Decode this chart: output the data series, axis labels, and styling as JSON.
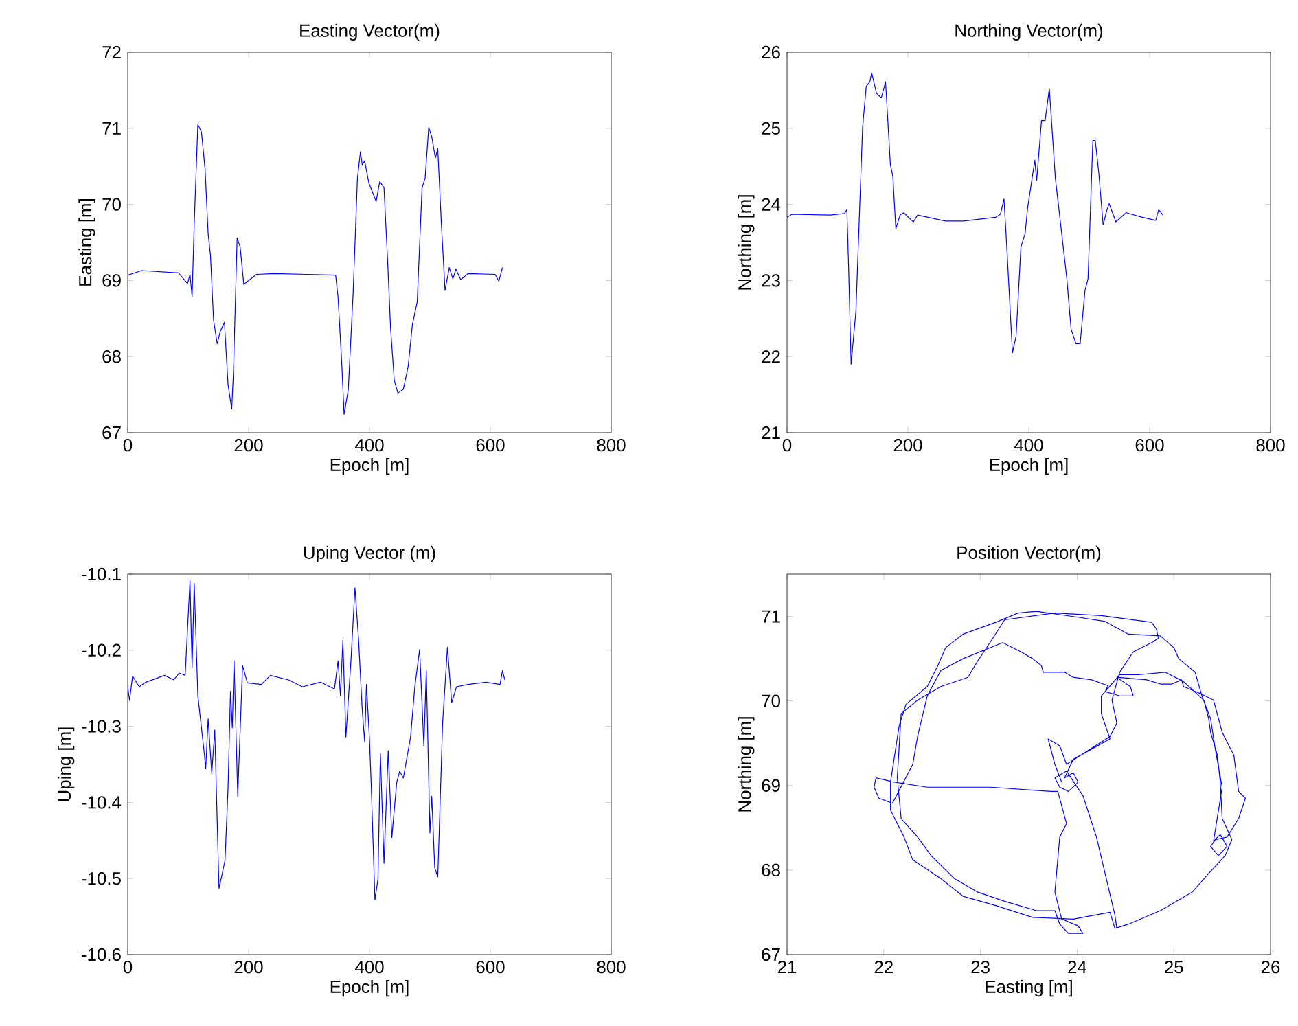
{
  "chart_data": [
    {
      "type": "line",
      "title": "Easting Vector(m)",
      "xlabel": "Epoch [m]",
      "ylabel": "Easting [m]",
      "xlim": [
        0,
        800
      ],
      "ylim": [
        67,
        72
      ],
      "xticks": [
        0,
        200,
        400,
        600,
        800
      ],
      "yticks": [
        67,
        68,
        69,
        70,
        71,
        72
      ],
      "series": [
        {
          "color": "#0000ff",
          "x": [
            0,
            23,
            84,
            99,
            103,
            106.5,
            110,
            116,
            122,
            128,
            133,
            137,
            142,
            148,
            153,
            160,
            166,
            172,
            175,
            181,
            186,
            192,
            213,
            243,
            297,
            344,
            348,
            354,
            358,
            365,
            373,
            380,
            385,
            388,
            392,
            399,
            411,
            417,
            424,
            430,
            435,
            441,
            447,
            456,
            464,
            471,
            479,
            487,
            492,
            498,
            503,
            509,
            513,
            519,
            525,
            532,
            538,
            543,
            551,
            563,
            608,
            614,
            620
          ],
          "values": [
            69.07,
            69.13,
            69.1,
            68.96,
            69.08,
            68.79,
            69.74,
            71.05,
            70.95,
            70.46,
            69.62,
            69.32,
            68.48,
            68.17,
            68.33,
            68.45,
            67.63,
            67.31,
            67.81,
            69.56,
            69.44,
            68.95,
            69.08,
            69.09,
            69.08,
            69.07,
            68.78,
            67.93,
            67.24,
            67.57,
            68.84,
            70.34,
            70.69,
            70.52,
            70.57,
            70.28,
            70.04,
            70.3,
            70.22,
            69.26,
            68.36,
            67.69,
            67.52,
            67.57,
            67.87,
            68.42,
            68.72,
            70.22,
            70.34,
            71.01,
            70.89,
            70.61,
            70.73,
            69.74,
            68.87,
            69.17,
            69.02,
            69.15,
            69.01,
            69.09,
            69.08,
            68.99,
            69.17
          ]
        }
      ]
    },
    {
      "type": "line",
      "title": "Northing Vector(m)",
      "xlabel": "Epoch [m]",
      "ylabel": "Northing [m]",
      "xlim": [
        0,
        800
      ],
      "ylim": [
        21,
        26
      ],
      "xticks": [
        0,
        200,
        400,
        600,
        800
      ],
      "yticks": [
        21,
        22,
        23,
        24,
        25,
        26
      ],
      "series": [
        {
          "color": "#0000ff",
          "x": [
            0,
            8,
            72,
            95,
            99,
            102,
            106,
            114,
            125,
            131,
            137,
            140,
            148,
            156,
            163,
            171,
            175,
            180,
            187,
            193,
            209,
            216,
            262,
            292,
            345,
            353,
            359,
            364,
            373,
            379,
            387,
            394,
            398,
            410,
            413,
            421,
            427,
            434,
            444,
            451,
            463,
            470,
            478,
            485,
            493,
            498,
            506,
            510,
            516,
            523,
            529,
            533,
            544,
            561,
            588,
            610,
            615,
            622
          ],
          "values": [
            23.83,
            23.87,
            23.86,
            23.88,
            23.93,
            23.14,
            21.9,
            22.6,
            25.01,
            25.55,
            25.61,
            25.73,
            25.46,
            25.4,
            25.61,
            24.52,
            24.37,
            23.68,
            23.86,
            23.89,
            23.77,
            23.86,
            23.78,
            23.78,
            23.83,
            23.87,
            24.07,
            23.38,
            22.05,
            22.27,
            23.44,
            23.62,
            23.95,
            24.58,
            24.31,
            25.1,
            25.1,
            25.52,
            24.34,
            23.86,
            23.02,
            22.36,
            22.17,
            22.17,
            22.87,
            23.02,
            24.84,
            24.84,
            24.4,
            23.73,
            23.92,
            24.01,
            23.77,
            23.89,
            23.83,
            23.79,
            23.93,
            23.86
          ]
        }
      ]
    },
    {
      "type": "line",
      "title": "Uping Vector (m)",
      "xlabel": "Epoch [m]",
      "ylabel": "Uping [m]",
      "xlim": [
        0,
        800
      ],
      "ylim": [
        -10.6,
        -10.1
      ],
      "xticks": [
        0,
        200,
        400,
        600,
        800
      ],
      "yticks": [
        -10.6,
        -10.5,
        -10.4,
        -10.3,
        -10.2,
        -10.1
      ],
      "series": [
        {
          "color": "#0000ff",
          "x": [
            0,
            3,
            8,
            19,
            30,
            61,
            76,
            85,
            95,
            103,
            106.5,
            110,
            116,
            122,
            127,
            129,
            133,
            139,
            144,
            151,
            156,
            161,
            166,
            170,
            173,
            176,
            182,
            190,
            198,
            221,
            236,
            266,
            289,
            319,
            342,
            348,
            352,
            356,
            361,
            369,
            376,
            382,
            388,
            392,
            395,
            400,
            403,
            409,
            414,
            418,
            424,
            431,
            437,
            445,
            450,
            456,
            462,
            468,
            475,
            483,
            490,
            494,
            500,
            503,
            508,
            513,
            517,
            521,
            529,
            536,
            544,
            563,
            593,
            616,
            620,
            624
          ],
          "values": [
            -10.248,
            -10.266,
            -10.234,
            -10.248,
            -10.242,
            -10.233,
            -10.239,
            -10.23,
            -10.233,
            -10.109,
            -10.223,
            -10.112,
            -10.26,
            -10.302,
            -10.338,
            -10.356,
            -10.29,
            -10.362,
            -10.305,
            -10.513,
            -10.495,
            -10.476,
            -10.38,
            -10.254,
            -10.302,
            -10.214,
            -10.392,
            -10.22,
            -10.243,
            -10.245,
            -10.233,
            -10.239,
            -10.248,
            -10.242,
            -10.251,
            -10.214,
            -10.26,
            -10.187,
            -10.314,
            -10.218,
            -10.118,
            -10.187,
            -10.278,
            -10.32,
            -10.245,
            -10.317,
            -10.38,
            -10.528,
            -10.501,
            -10.335,
            -10.48,
            -10.332,
            -10.446,
            -10.374,
            -10.359,
            -10.368,
            -10.341,
            -10.314,
            -10.248,
            -10.199,
            -10.326,
            -10.227,
            -10.44,
            -10.392,
            -10.486,
            -10.498,
            -10.398,
            -10.296,
            -10.196,
            -10.269,
            -10.248,
            -10.245,
            -10.242,
            -10.245,
            -10.227,
            -10.239
          ]
        }
      ]
    },
    {
      "type": "line",
      "title": "Position Vector(m)",
      "xlabel": "Easting [m]",
      "ylabel": "Northing [m]",
      "xlim": [
        21,
        26
      ],
      "ylim": [
        67,
        71.5
      ],
      "xticks": [
        21,
        22,
        23,
        24,
        25,
        26
      ],
      "yticks": [
        67,
        68,
        69,
        70,
        71
      ],
      "series": [
        {
          "color": "#0000ff",
          "x": [
            23.84,
            23.77,
            23.7,
            23.82,
            23.89,
            24.34,
            24.41,
            24.36,
            24.44,
            24.58,
            24.77,
            24.84,
            24.82,
            24.77,
            24.25,
            23.77,
            23.25,
            23.11,
            22.97,
            22.87,
            22.59,
            22.35,
            22.18,
            22.14,
            22.18,
            22.35,
            22.49,
            22.73,
            22.97,
            23.25,
            23.58,
            23.77,
            23.82,
            23.91,
            24.06,
            24.01,
            23.84,
            23.77,
            23.82,
            23.89,
            23.8,
            23.73,
            23.11,
            22.45,
            22.11,
            21.92,
            21.9,
            21.95,
            22.09,
            22.3,
            22.35,
            22.45,
            22.59,
            22.82,
            23.23,
            23.42,
            23.54,
            23.63,
            23.65,
            23.87,
            23.96,
            24.15,
            24.32,
            24.29,
            24.44,
            24.58,
            24.55,
            24.41,
            24.72,
            24.86,
            24.98,
            25.08,
            25.1,
            25.27,
            25.41,
            25.5,
            25.57,
            25.62,
            25.67,
            25.74,
            25.67,
            25.55,
            25.43,
            25.38,
            25.46,
            25.55,
            25.48,
            25.41,
            25.5,
            25.43,
            25.38,
            25.29,
            25.22,
            25.05,
            25.0,
            24.86,
            24.53,
            24.29,
            24.01,
            23.58,
            23.39,
            23.16,
            22.82,
            22.64,
            22.56,
            22.45,
            22.23,
            22.16,
            22.07,
            22.07,
            22.21,
            22.3,
            22.59,
            22.82,
            23.16,
            23.54,
            23.96,
            24.34,
            24.39,
            24.53,
            24.86,
            25.19,
            25.36,
            25.53,
            25.6,
            25.5,
            25.48,
            25.45,
            25.38,
            25.36,
            25.31,
            25.1,
            24.91,
            24.63,
            24.44,
            24.25,
            24.25,
            24.34,
            23.96,
            23.87,
            23.96,
            24.01,
            23.91,
            23.82,
            23.77,
            23.89,
            24.06,
            24.2,
            24.39,
            24.41
          ],
          "values": [
            69.04,
            69.25,
            69.55,
            69.47,
            69.25,
            69.58,
            69.74,
            70.01,
            70.34,
            70.58,
            70.69,
            70.74,
            70.85,
            70.93,
            71.01,
            71.04,
            70.96,
            70.71,
            70.47,
            70.28,
            70.17,
            70.01,
            69.85,
            69.09,
            68.61,
            68.39,
            68.17,
            67.9,
            67.74,
            67.63,
            67.52,
            67.52,
            67.36,
            67.25,
            67.25,
            67.34,
            67.42,
            67.74,
            68.39,
            68.55,
            68.93,
            68.93,
            68.98,
            68.98,
            69.04,
            69.09,
            68.98,
            68.85,
            68.79,
            69.25,
            69.58,
            70.06,
            70.36,
            70.5,
            70.69,
            70.58,
            70.5,
            70.42,
            70.34,
            70.34,
            70.28,
            70.25,
            70.18,
            70.11,
            70.06,
            70.06,
            70.17,
            70.28,
            70.25,
            70.2,
            70.2,
            70.25,
            70.17,
            70.09,
            70.01,
            69.63,
            69.47,
            69.36,
            68.93,
            68.85,
            68.61,
            68.39,
            68.36,
            68.28,
            68.17,
            68.28,
            68.42,
            68.34,
            68.98,
            69.42,
            69.79,
            70.06,
            70.34,
            70.5,
            70.63,
            70.77,
            70.79,
            70.94,
            70.99,
            71.06,
            71.04,
            70.93,
            70.79,
            70.63,
            70.42,
            70.17,
            69.96,
            69.71,
            69.04,
            68.71,
            68.39,
            68.12,
            67.9,
            67.69,
            67.58,
            67.44,
            67.42,
            67.5,
            67.31,
            67.36,
            67.52,
            67.74,
            67.96,
            68.17,
            68.36,
            68.61,
            69.04,
            69.36,
            69.63,
            69.79,
            70.01,
            70.23,
            70.34,
            70.31,
            70.31,
            70.06,
            69.85,
            69.55,
            69.31,
            69.09,
            69.15,
            69.04,
            68.93,
            68.98,
            69.09,
            69.17,
            68.88,
            68.39,
            67.47,
            67.31
          ]
        }
      ]
    }
  ]
}
